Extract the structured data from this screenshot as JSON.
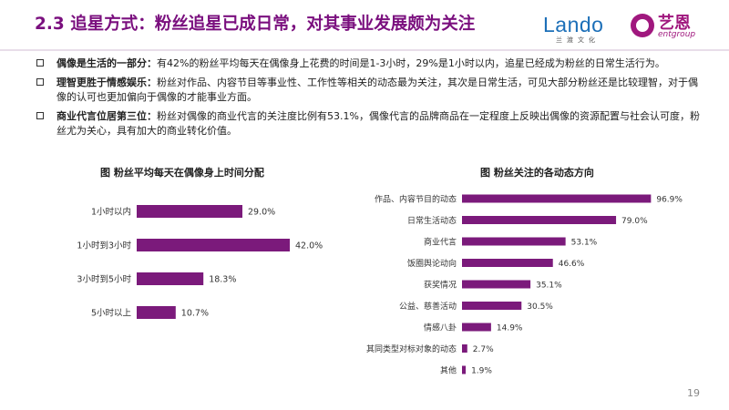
{
  "page": {
    "title": "2.3 追星方式：粉丝追星已成日常，对其事业发展颇为关注",
    "page_number": "19",
    "logos": {
      "lando_word": "Lando",
      "lando_sub": "兰渡文化",
      "yien_text": "艺恩",
      "yien_sub": "entgroup"
    },
    "colors": {
      "accent": "#7a0f7e",
      "bar": "#7b1a7b"
    }
  },
  "bullets": [
    {
      "lead": "偶像是生活的一部分：",
      "text": "有42%的粉丝平均每天在偶像身上花费的时间是1-3小时，29%是1小时以内，追星已经成为粉丝的日常生活行为。"
    },
    {
      "lead": "理智更胜于情感娱乐：",
      "text": "粉丝对作品、内容节目等事业性、工作性等相关的动态最为关注，其次是日常生活，可见大部分粉丝还是比较理智，对于偶像的认可也更加偏向于偶像的才能事业方面。"
    },
    {
      "lead": "商业代言位居第三位：",
      "text": "粉丝对偶像的商业代言的关注度比例有53.1%，偶像代言的品牌商品在一定程度上反映出偶像的资源配置与社会认可度，粉丝尤为关心，具有加大的商业转化价值。"
    }
  ],
  "chart_data": [
    {
      "type": "bar",
      "orientation": "horizontal",
      "title": "图  粉丝平均每天在偶像身上时间分配",
      "categories": [
        "1小时以内",
        "1小时到3小时",
        "3小时到5小时",
        "5小时以上"
      ],
      "values": [
        29.0,
        42.0,
        18.3,
        10.7
      ],
      "labels": [
        "29.0%",
        "42.0%",
        "18.3%",
        "10.7%"
      ],
      "unit": "%",
      "xlim": [
        0,
        45
      ]
    },
    {
      "type": "bar",
      "orientation": "horizontal",
      "title": "图  粉丝关注的各动态方向",
      "categories": [
        "作品、内容节目的动态",
        "日常生活动态",
        "商业代言",
        "饭圈舆论动向",
        "获奖情况",
        "公益、慈善活动",
        "情感八卦",
        "其同类型对标对象的动态",
        "其他"
      ],
      "values": [
        96.9,
        79.0,
        53.1,
        46.6,
        35.1,
        30.5,
        14.9,
        2.7,
        1.9
      ],
      "labels": [
        "96.9%",
        "79.0%",
        "53.1%",
        "46.6%",
        "35.1%",
        "30.5%",
        "14.9%",
        "2.7%",
        "1.9%"
      ],
      "unit": "%",
      "xlim": [
        0,
        100
      ]
    }
  ]
}
